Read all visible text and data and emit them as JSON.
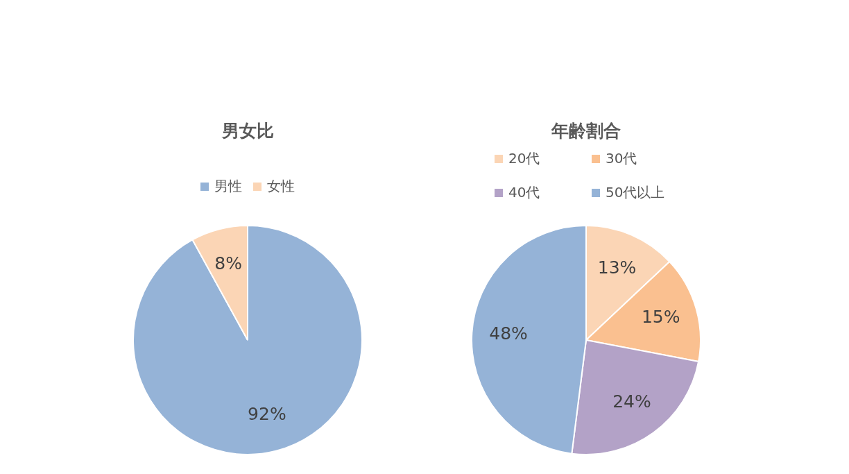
{
  "chart_data": [
    {
      "type": "pie",
      "title": "男女比",
      "categories": [
        "男性",
        "女性"
      ],
      "values": [
        92,
        8
      ],
      "colors": [
        "#95b3d7",
        "#fbd5b5"
      ],
      "legend": "top",
      "value_labels": [
        "92%",
        "8%"
      ]
    },
    {
      "type": "pie",
      "title": "年齢割合",
      "categories": [
        "20代",
        "30代",
        "40代",
        "50代以上"
      ],
      "values": [
        13,
        15,
        24,
        48
      ],
      "colors": [
        "#fbd5b5",
        "#fac090",
        "#b3a2c7",
        "#95b3d7"
      ],
      "legend": "top",
      "value_labels": [
        "13%",
        "15%",
        "24%",
        "48%"
      ]
    }
  ]
}
